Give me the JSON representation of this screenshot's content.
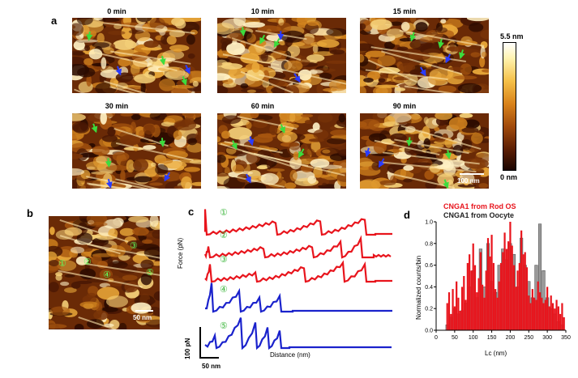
{
  "panel_a": {
    "label": "a",
    "frames": [
      {
        "time": "0 min"
      },
      {
        "time": "10 min"
      },
      {
        "time": "15 min"
      },
      {
        "time": "30 min"
      },
      {
        "time": "60 min"
      },
      {
        "time": "90 min"
      }
    ],
    "scale_bar": "100 nm",
    "colorbar": {
      "max": "5.5 nm",
      "min": "0 nm"
    }
  },
  "panel_b": {
    "label": "b",
    "scale_bar": "50 nm",
    "markers": [
      "①",
      "②",
      "③",
      "④",
      "⑤"
    ]
  },
  "panel_c": {
    "label": "c",
    "ylabel": "Force (pN)",
    "xlabel": "Distance (nm)",
    "force_scale": "100 pN",
    "distance_scale": "50 nm",
    "curve_markers": [
      "①",
      "②",
      "③",
      "④",
      "⑤"
    ]
  },
  "panel_d": {
    "label": "d",
    "legend": [
      "CNGA1 from Rod OS",
      "CNGA1 from Oocyte"
    ],
    "colors": {
      "rod": "#e8141c",
      "oocyte": "#222222"
    },
    "ylabel": "Normalized counts/bin",
    "xlabel": "Lc (nm)",
    "xticks": [
      "0",
      "50",
      "100",
      "150",
      "200",
      "250",
      "300",
      "350"
    ],
    "yticks": [
      "0.0",
      "0.2",
      "0.4",
      "0.6",
      "0.8",
      "1.0"
    ]
  },
  "chart_data": {
    "type": "bar",
    "title": "",
    "xlabel": "Lc (nm)",
    "ylabel": "Normalized counts/bin",
    "xlim": [
      0,
      350
    ],
    "ylim": [
      0,
      1.0
    ],
    "grid": false,
    "legend_position": "top-left",
    "series": [
      {
        "name": "CNGA1 from Rod OS",
        "x": [
          30,
          35,
          40,
          45,
          50,
          55,
          60,
          65,
          70,
          75,
          80,
          85,
          90,
          95,
          100,
          105,
          110,
          115,
          120,
          125,
          130,
          135,
          140,
          145,
          150,
          155,
          160,
          165,
          170,
          175,
          180,
          185,
          190,
          195,
          200,
          205,
          210,
          215,
          220,
          225,
          230,
          235,
          240,
          245,
          250,
          255,
          260,
          265,
          270,
          275,
          280,
          285,
          290,
          295,
          300,
          305,
          310,
          315,
          320,
          325,
          330,
          335,
          340,
          345
        ],
        "values": [
          0.25,
          0.35,
          0.15,
          0.38,
          0.22,
          0.45,
          0.3,
          0.18,
          0.4,
          0.5,
          0.28,
          0.62,
          0.7,
          0.55,
          0.8,
          0.6,
          0.35,
          0.48,
          0.72,
          0.42,
          0.3,
          0.55,
          0.85,
          0.68,
          0.88,
          0.62,
          0.38,
          0.3,
          0.45,
          0.62,
          0.72,
          0.9,
          0.75,
          0.82,
          1.0,
          0.78,
          0.6,
          0.4,
          0.55,
          0.62,
          0.92,
          0.7,
          0.72,
          0.58,
          0.32,
          0.25,
          0.38,
          0.3,
          0.28,
          0.45,
          0.35,
          0.3,
          0.25,
          0.28,
          0.4,
          0.22,
          0.32,
          0.25,
          0.2,
          0.28,
          0.22,
          0.15,
          0.25,
          0.12
        ]
      },
      {
        "name": "CNGA1 from Oocyte",
        "x": [
          30,
          40,
          50,
          60,
          70,
          80,
          90,
          100,
          110,
          120,
          130,
          140,
          150,
          160,
          170,
          180,
          190,
          200,
          210,
          220,
          230,
          240,
          250,
          260,
          270,
          280,
          290,
          300,
          310,
          320,
          330,
          340
        ],
        "values": [
          0.05,
          0.12,
          0.2,
          0.15,
          0.18,
          0.25,
          0.4,
          0.55,
          0.3,
          0.75,
          0.4,
          0.8,
          0.45,
          0.35,
          0.6,
          0.75,
          0.65,
          0.8,
          0.7,
          0.4,
          0.85,
          0.6,
          0.45,
          0.3,
          0.6,
          0.98,
          0.55,
          0.3,
          0.2,
          0.15,
          0.08,
          0.05
        ]
      }
    ]
  }
}
